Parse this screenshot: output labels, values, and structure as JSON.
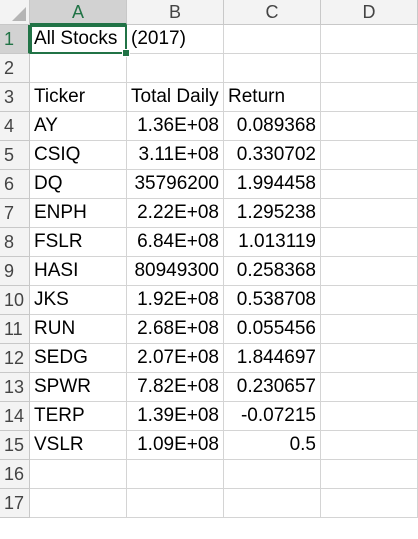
{
  "columns": [
    "A",
    "B",
    "C",
    "D"
  ],
  "rows": [
    "1",
    "2",
    "3",
    "4",
    "5",
    "6",
    "7",
    "8",
    "9",
    "10",
    "11",
    "12",
    "13",
    "14",
    "15",
    "16",
    "17"
  ],
  "active_cell": "A1",
  "a1": {
    "value": "All Stocks",
    "overflow_visible": "(2017)"
  },
  "header": {
    "ticker": "Ticker",
    "volume": "Total Daily Volume",
    "return": "Return"
  },
  "table": [
    {
      "ticker": "AY",
      "volume": "1.36E+08",
      "return": "0.089368"
    },
    {
      "ticker": "CSIQ",
      "volume": "3.11E+08",
      "return": "0.330702"
    },
    {
      "ticker": "DQ",
      "volume": "35796200",
      "return": "1.994458"
    },
    {
      "ticker": "ENPH",
      "volume": "2.22E+08",
      "return": "1.295238"
    },
    {
      "ticker": "FSLR",
      "volume": "6.84E+08",
      "return": "1.013119"
    },
    {
      "ticker": "HASI",
      "volume": "80949300",
      "return": "0.258368"
    },
    {
      "ticker": "JKS",
      "volume": "1.92E+08",
      "return": "0.538708"
    },
    {
      "ticker": "RUN",
      "volume": "2.68E+08",
      "return": "0.055456"
    },
    {
      "ticker": "SEDG",
      "volume": "2.07E+08",
      "return": "1.844697"
    },
    {
      "ticker": "SPWR",
      "volume": "7.82E+08",
      "return": "0.230657"
    },
    {
      "ticker": "TERP",
      "volume": "1.39E+08",
      "return": "-0.07215"
    },
    {
      "ticker": "VSLR",
      "volume": "1.09E+08",
      "return": "0.5"
    }
  ],
  "colors": {
    "accent": "#217346",
    "gridline": "#d4d4d4",
    "header_bg": "#f3f3f3"
  }
}
